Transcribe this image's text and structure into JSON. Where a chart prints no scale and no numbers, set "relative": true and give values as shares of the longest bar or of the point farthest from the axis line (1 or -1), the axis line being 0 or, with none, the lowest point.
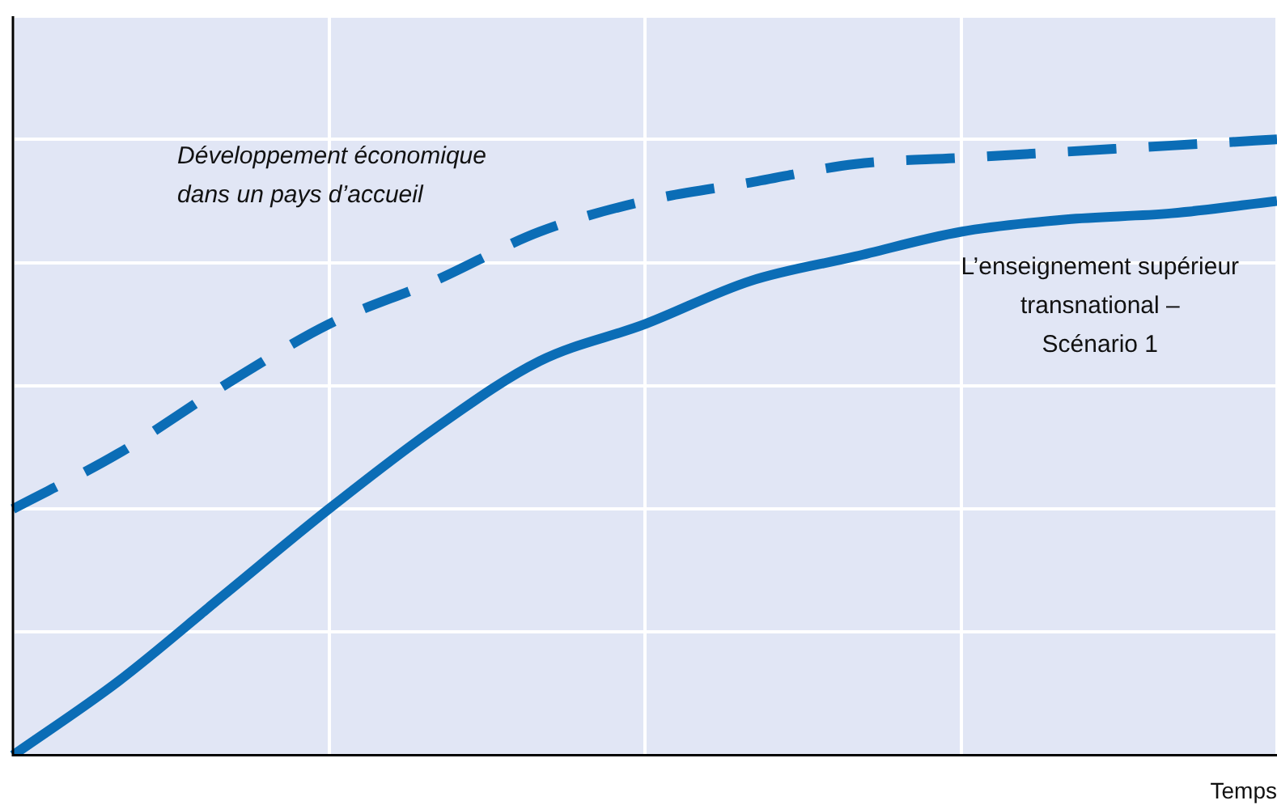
{
  "chart_data": {
    "type": "line",
    "xlabel": "Temps",
    "relative": true,
    "grid": true,
    "legend": false,
    "marker": "none",
    "categories": [
      null,
      null,
      null,
      null,
      null,
      null,
      null,
      null,
      null,
      null,
      null,
      null,
      null
    ],
    "series": [
      {
        "name": "Développement économique\ndans un pays d’accueil",
        "color": "#0b6db6",
        "line_style": "dashed",
        "values": [
          0.4,
          0.49,
          0.6,
          0.7,
          0.77,
          0.85,
          0.9,
          0.93,
          0.96,
          0.97,
          0.98,
          0.99,
          1
        ]
      },
      {
        "name": "L’enseignement supérieur\ntransnational –\nScénario 1",
        "color": "#0b6db6",
        "line_style": "solid",
        "values": [
          0,
          0.12,
          0.26,
          0.4,
          0.53,
          0.64,
          0.7,
          0.77,
          0.81,
          0.85,
          0.87,
          0.88,
          0.9
        ]
      }
    ]
  }
}
